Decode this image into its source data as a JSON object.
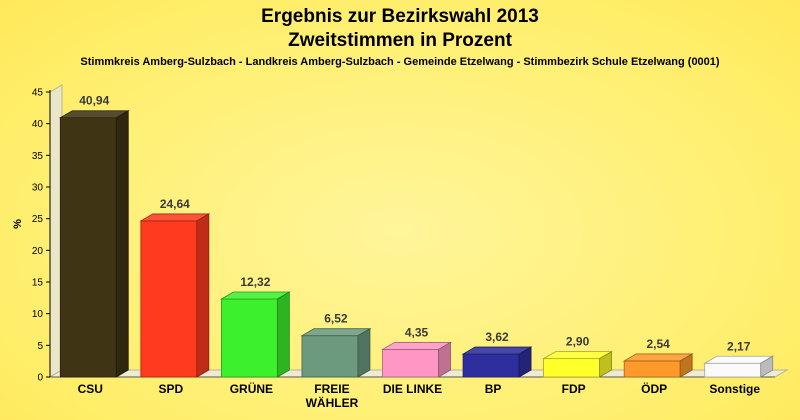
{
  "chart_data": {
    "type": "bar",
    "title": "Ergebnis zur Bezirkswahl 2013",
    "title2": "Zweitstimmen in Prozent",
    "subtitle": "Stimmkreis Amberg-Sulzbach - Landkreis Amberg-Sulzbach - Gemeinde Etzelwang - Stimmbezirk Schule Etzelwang (0001)",
    "ylabel": "%",
    "ylim": [
      0,
      45
    ],
    "yticks": [
      0,
      5,
      10,
      15,
      20,
      25,
      30,
      35,
      40,
      45
    ],
    "grid": false,
    "legend": "none",
    "categories": [
      [
        "CSU"
      ],
      [
        "SPD"
      ],
      [
        "GRÜNE"
      ],
      [
        "FREIE",
        "WÄHLER"
      ],
      [
        "DIE LINKE"
      ],
      [
        "BP"
      ],
      [
        "FDP"
      ],
      [
        "ÖDP"
      ],
      [
        "Sonstige"
      ]
    ],
    "values": [
      40.94,
      24.64,
      12.32,
      6.52,
      4.35,
      3.62,
      2.9,
      2.54,
      2.17
    ],
    "value_labels": [
      "40,94",
      "24,64",
      "12,32",
      "6,52",
      "4,35",
      "3,62",
      "2,90",
      "2,54",
      "2,17"
    ],
    "colors": [
      "#3f3414",
      "#ff3a1e",
      "#3cf02c",
      "#6b9a7e",
      "#ff96c4",
      "#2e2e9e",
      "#ffff2a",
      "#ff9a2a",
      "#fafafa"
    ]
  }
}
